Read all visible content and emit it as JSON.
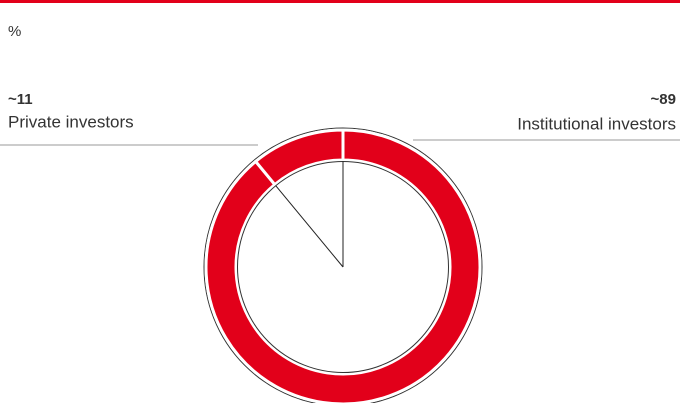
{
  "chart_data": {
    "type": "pie",
    "donut": true,
    "unit": "%",
    "categories": [
      "Institutional investors",
      "Private investors"
    ],
    "values": [
      89,
      11
    ],
    "value_labels": [
      "~89",
      "~11"
    ],
    "color": "#e2001a"
  }
}
